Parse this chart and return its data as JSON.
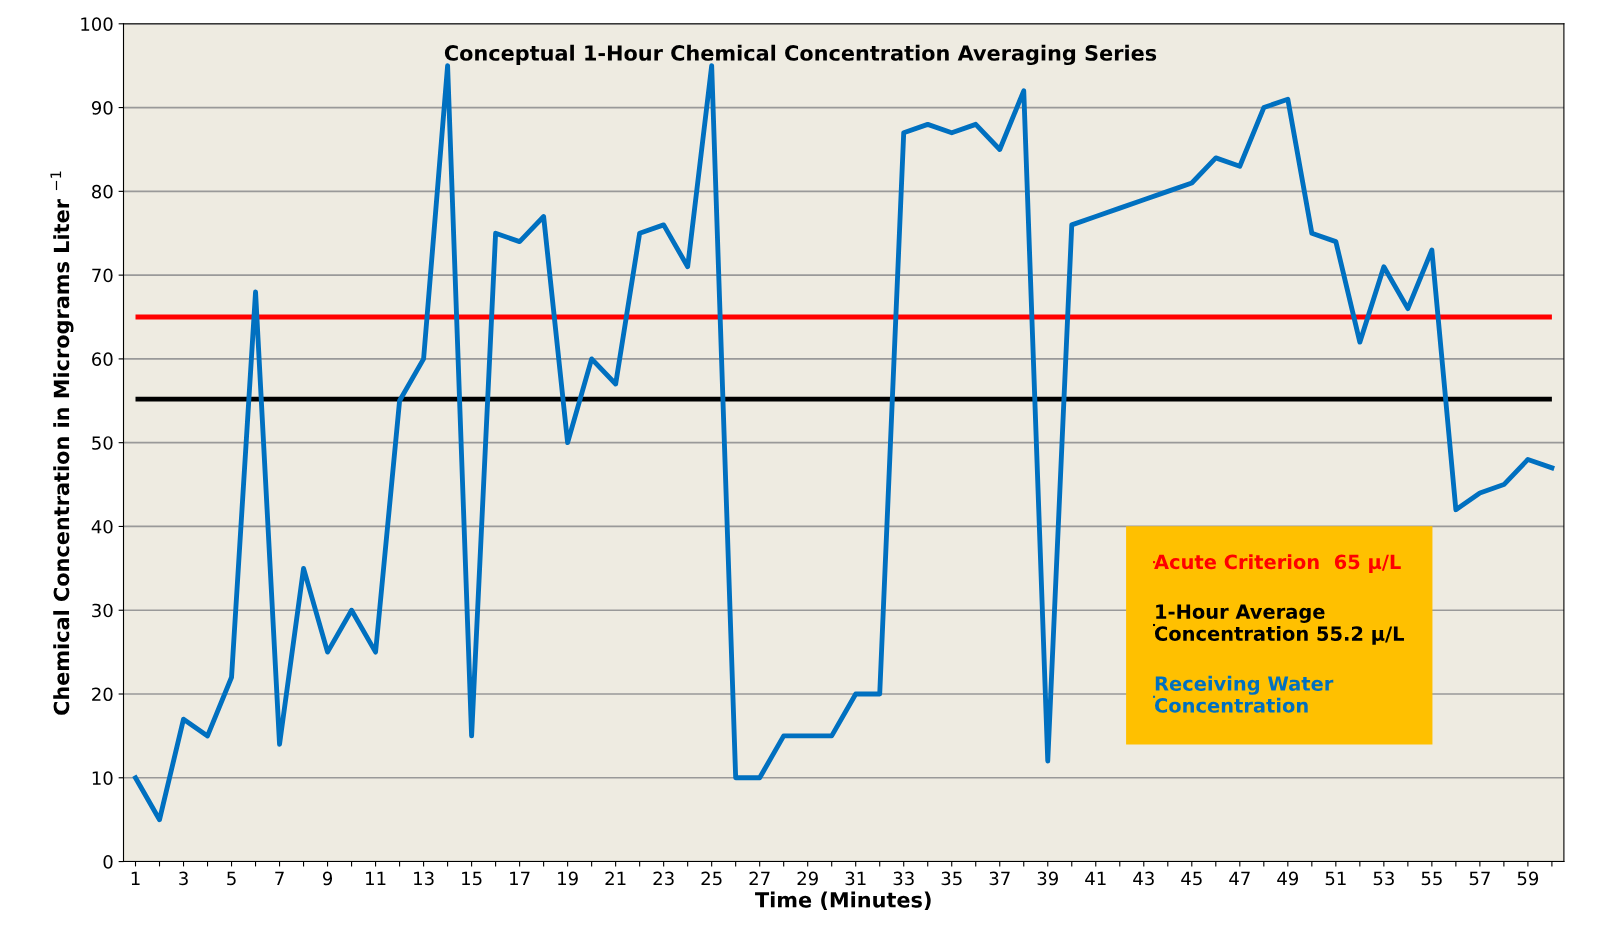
{
  "chart_data": {
    "type": "line",
    "title": "Conceptual 1-Hour Chemical Concentration Averaging Series",
    "xlabel": "Time (Minutes)",
    "ylabel": "Chemical Concentration in Micrograms Liter $^{−1}$",
    "categories": [
      "1",
      null,
      "3",
      null,
      "5",
      null,
      "7",
      null,
      "9",
      null,
      "11",
      null,
      "13",
      null,
      "15",
      null,
      "17",
      null,
      "19",
      null,
      "21",
      null,
      "23",
      null,
      "25",
      null,
      "27",
      null,
      "29",
      null,
      "31",
      null,
      "33",
      null,
      "35",
      null,
      "37",
      null,
      "39",
      null,
      "41",
      null,
      "43",
      null,
      "45",
      null,
      "47",
      null,
      "49",
      null,
      "51",
      null,
      "53",
      null,
      "55",
      null,
      "57",
      null,
      "59",
      null
    ],
    "series": [
      {
        "name": "Receiving Water\nConcentration",
        "color": "#0070c0",
        "values": [
          10,
          5,
          17,
          15,
          22,
          68,
          14,
          35,
          25,
          30,
          25,
          55,
          60,
          95,
          15,
          75,
          74,
          77,
          50,
          60,
          57,
          75,
          76,
          71,
          95,
          10,
          10,
          15,
          15,
          15,
          20,
          20,
          87,
          88,
          87,
          88,
          85,
          92,
          12,
          76,
          77,
          78,
          79,
          80,
          81,
          84,
          83,
          90,
          91,
          75,
          74,
          62,
          71,
          66,
          73,
          42,
          44,
          45,
          48,
          47
        ]
      }
    ],
    "ref_lines": [
      {
        "axis": "y",
        "value": 65,
        "label": "Acute Criterion  65 µ/L",
        "color": "#ff0000"
      },
      {
        "axis": "y",
        "value": 55.2,
        "label": "1-Hour Average\nConcentration 55.2 µ/L",
        "color": "#000000"
      }
    ],
    "ylim": [
      0,
      100
    ],
    "yticks": [
      0,
      10,
      20,
      30,
      40,
      50,
      60,
      70,
      80,
      90,
      100
    ],
    "grid": "y",
    "legend": "right",
    "marker": "none",
    "line_style": "solid"
  }
}
